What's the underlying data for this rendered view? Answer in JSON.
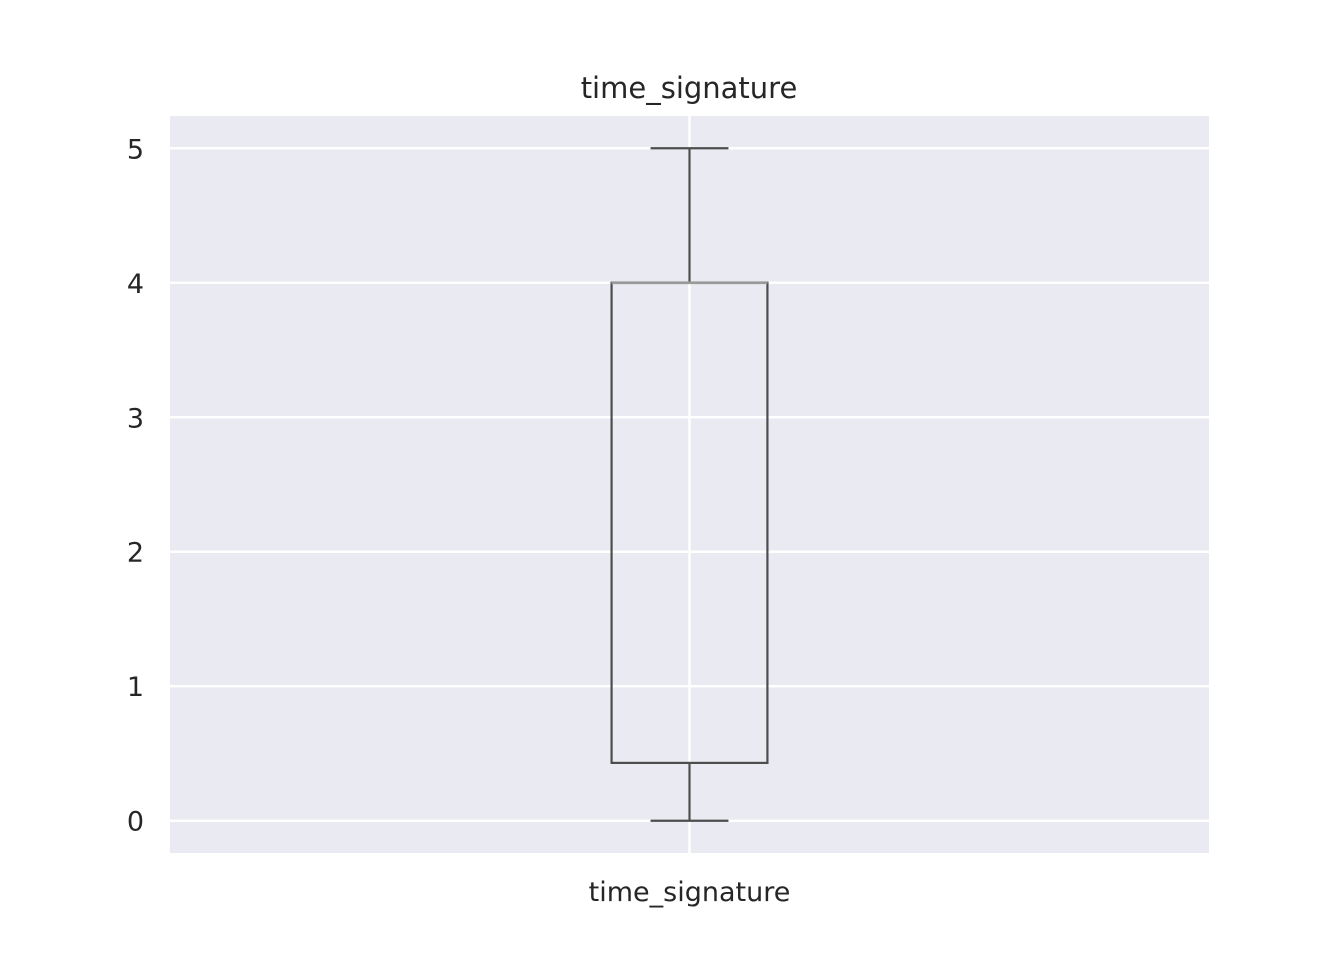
{
  "chart_data": {
    "type": "box",
    "title": "time_signature",
    "xlabel": "",
    "ylabel": "",
    "categories": [
      "time_signature"
    ],
    "boxes": [
      {
        "name": "time_signature",
        "whisker_low": 0,
        "q1": 0.43,
        "median": 4,
        "q3": 4,
        "whisker_high": 5
      }
    ],
    "ylim": [
      -0.24,
      5.24
    ],
    "yticks": [
      0,
      1,
      2,
      3,
      4,
      5
    ],
    "grid": true,
    "colors": {
      "background": "#eaeaf2",
      "grid": "#ffffff",
      "box_line": "#4d4d4d",
      "median_line": "#9a9a9a",
      "text": "#262626"
    }
  }
}
